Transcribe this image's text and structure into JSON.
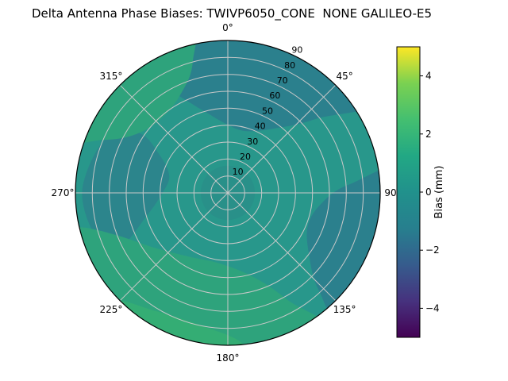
{
  "title": "Delta Antenna Phase Biases: TWIVP6050_CONE  NONE GALILEO-E5",
  "chart_data": {
    "type": "heatmap",
    "projection": "polar",
    "title": "Delta Antenna Phase Biases: TWIVP6050_CONE  NONE GALILEO-E5",
    "angular_tick_values_deg": [
      0,
      45,
      90,
      135,
      180,
      225,
      270,
      315
    ],
    "angular_tick_labels": [
      "0°",
      "45°",
      "90°",
      "135°",
      "180°",
      "225°",
      "270°",
      "315°"
    ],
    "radial_tick_labels": [
      "10",
      "20",
      "30",
      "40",
      "50",
      "60",
      "70",
      "80",
      "90"
    ],
    "radial_range": [
      0,
      90
    ],
    "radial_label_azimuth_deg": 22.5,
    "grid": true,
    "colorbar": {
      "label": "Bias (mm)",
      "tick_values": [
        4,
        2,
        0,
        -2,
        -4
      ],
      "tick_labels": [
        "4",
        "2",
        "0",
        "−2",
        "−4"
      ],
      "range_min": -5,
      "range_max": 5,
      "colormap": "viridis",
      "gradient_stops": [
        "#440154",
        "#46327e",
        "#365c8d",
        "#277f8e",
        "#21918c",
        "#22a884",
        "#44bf70",
        "#7ad151",
        "#fde725"
      ]
    },
    "base_bias_mm": 0.2,
    "base_color": "#28978b",
    "regions": [
      {
        "name": "north-negative-patch",
        "bias_mm": -0.7,
        "color": "#2b808d",
        "polar_outline": [
          [
            -45,
            112
          ],
          [
            -32,
            74
          ],
          [
            -18,
            52
          ],
          [
            -2,
            41
          ],
          [
            16,
            38
          ],
          [
            36,
            47
          ],
          [
            50,
            68
          ],
          [
            57,
            112
          ],
          [
            5,
            124
          ]
        ]
      },
      {
        "name": "east-negative-patch",
        "bias_mm": -0.7,
        "color": "#2b808d",
        "polar_outline": [
          [
            82,
            112
          ],
          [
            86,
            72
          ],
          [
            96,
            56
          ],
          [
            112,
            51
          ],
          [
            127,
            60
          ],
          [
            137,
            79
          ],
          [
            139,
            112
          ],
          [
            110,
            122
          ]
        ]
      },
      {
        "name": "west-negative-patch",
        "bias_mm": -0.5,
        "color": "#2c858c",
        "polar_outline": [
          [
            243,
            72
          ],
          [
            254,
            50
          ],
          [
            269,
            39
          ],
          [
            286,
            36
          ],
          [
            299,
            46
          ],
          [
            304,
            63
          ],
          [
            294,
            79
          ],
          [
            271,
            86
          ],
          [
            251,
            82
          ]
        ]
      },
      {
        "name": "center-patch",
        "bias_mm": -0.2,
        "color": "#299089",
        "disk": {
          "azimuth_deg": 0,
          "r": 0,
          "radius_units": 16
        }
      },
      {
        "name": "south-positive-patch",
        "bias_mm": 0.6,
        "color": "#2ea37c",
        "polar_outline": [
          [
            144,
            112
          ],
          [
            151,
            72
          ],
          [
            163,
            52
          ],
          [
            186,
            42
          ],
          [
            211,
            44
          ],
          [
            233,
            54
          ],
          [
            249,
            70
          ],
          [
            257,
            90
          ],
          [
            258,
            112
          ],
          [
            200,
            124
          ]
        ]
      },
      {
        "name": "northwest-positive-patch",
        "bias_mm": 0.6,
        "color": "#2ea37c",
        "polar_outline": [
          [
            287,
            112
          ],
          [
            293,
            80
          ],
          [
            303,
            64
          ],
          [
            319,
            59
          ],
          [
            335,
            65
          ],
          [
            345,
            80
          ],
          [
            348,
            112
          ],
          [
            316,
            122
          ]
        ]
      },
      {
        "name": "south-rim-positive-patch",
        "bias_mm": 1.0,
        "color": "#34ad74",
        "polar_outline": [
          [
            170,
            112
          ],
          [
            174,
            90
          ],
          [
            191,
            80
          ],
          [
            212,
            82
          ],
          [
            227,
            93
          ],
          [
            229,
            112
          ],
          [
            200,
            118
          ]
        ]
      }
    ]
  }
}
